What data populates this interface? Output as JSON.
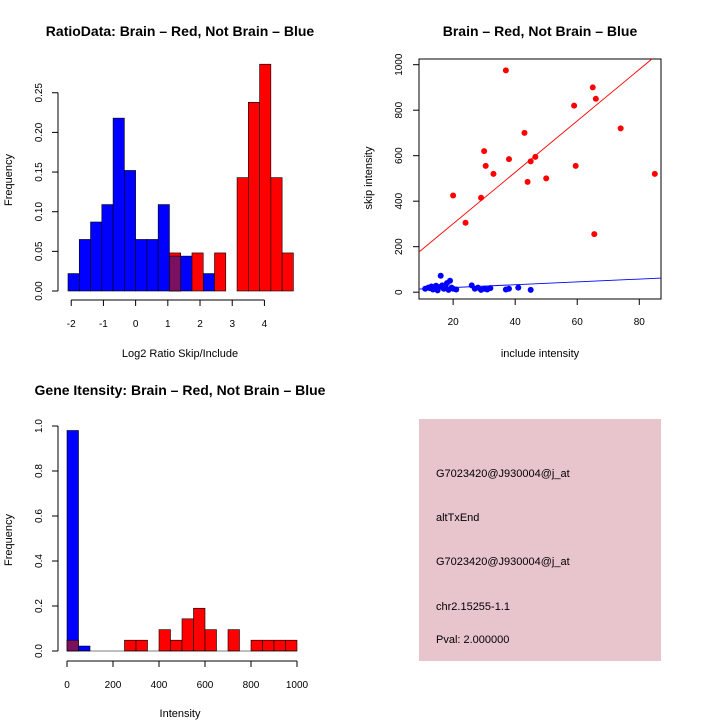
{
  "colors": {
    "brain": "#ff0000",
    "not_brain": "#0000ff",
    "overlap": "#7a1060",
    "info_bg": "#e8c4cc",
    "pval": "#8b0000"
  },
  "chart_data": [
    {
      "id": "ratio_hist",
      "type": "bar",
      "title": "RatioData: Brain – Red, Not Brain – Blue",
      "xlabel": "Log2 Ratio Skip/Include",
      "ylabel": "Frequency",
      "xlim": [
        -2.1,
        4.9
      ],
      "ylim": [
        0,
        0.3
      ],
      "xticks": [
        "-2",
        "-1",
        "0",
        "1",
        "2",
        "3",
        "4"
      ],
      "yticks": [
        "0.00",
        "0.05",
        "0.10",
        "0.15",
        "0.20",
        "0.25"
      ],
      "bin_width": 0.35,
      "series": [
        {
          "name": "Not Brain",
          "color": "blue",
          "bins": [
            [
              -2.1,
              0.022
            ],
            [
              -1.75,
              0.065
            ],
            [
              -1.4,
              0.087
            ],
            [
              -1.05,
              0.109
            ],
            [
              -0.7,
              0.218
            ],
            [
              -0.35,
              0.152
            ],
            [
              0.0,
              0.065
            ],
            [
              0.35,
              0.065
            ],
            [
              0.7,
              0.109
            ],
            [
              1.05,
              0.044
            ],
            [
              1.4,
              0.044
            ],
            [
              2.1,
              0.022
            ]
          ]
        },
        {
          "name": "Brain",
          "color": "red",
          "bins": [
            [
              1.05,
              0.048
            ],
            [
              1.75,
              0.048
            ],
            [
              2.45,
              0.048
            ],
            [
              3.15,
              0.143
            ],
            [
              3.5,
              0.238
            ],
            [
              3.85,
              0.286
            ],
            [
              4.2,
              0.143
            ],
            [
              4.55,
              0.048
            ]
          ]
        }
      ]
    },
    {
      "id": "scatter",
      "type": "scatter",
      "title": "Brain – Red, Not Brain – Blue",
      "xlabel": "include intensity",
      "ylabel": "skip intensity",
      "xlim": [
        9,
        87
      ],
      "ylim": [
        -30,
        1025
      ],
      "xticks": [
        "20",
        "40",
        "60",
        "80"
      ],
      "yticks": [
        "0",
        "200",
        "400",
        "600",
        "800",
        "1000"
      ],
      "series": [
        {
          "name": "Brain",
          "color": "red",
          "points": [
            [
              20,
              425
            ],
            [
              24,
              305
            ],
            [
              29,
              415
            ],
            [
              30,
              620
            ],
            [
              30.5,
              555
            ],
            [
              33,
              520
            ],
            [
              37,
              975
            ],
            [
              38,
              585
            ],
            [
              43,
              700
            ],
            [
              44,
              485
            ],
            [
              45,
              575
            ],
            [
              46.5,
              595
            ],
            [
              50,
              500
            ],
            [
              59,
              820
            ],
            [
              59.5,
              555
            ],
            [
              65,
              900
            ],
            [
              65.5,
              255
            ],
            [
              66,
              850
            ],
            [
              74,
              720
            ],
            [
              85,
              520
            ]
          ],
          "fit": {
            "intercept": 75,
            "slope": 11.3
          }
        },
        {
          "name": "Not Brain",
          "color": "blue",
          "points": [
            [
              11,
              15
            ],
            [
              12,
              20
            ],
            [
              12.5,
              18
            ],
            [
              13,
              25
            ],
            [
              13.5,
              12
            ],
            [
              14,
              20
            ],
            [
              14.5,
              28
            ],
            [
              15,
              8
            ],
            [
              15.5,
              22
            ],
            [
              16,
              72
            ],
            [
              16.5,
              30
            ],
            [
              17,
              15
            ],
            [
              17.5,
              25
            ],
            [
              18,
              40
            ],
            [
              18.5,
              10
            ],
            [
              19,
              50
            ],
            [
              19.5,
              20
            ],
            [
              20,
              15
            ],
            [
              21,
              12
            ],
            [
              26,
              30
            ],
            [
              27,
              15
            ],
            [
              28,
              20
            ],
            [
              29,
              10
            ],
            [
              30,
              15
            ],
            [
              31,
              12
            ],
            [
              32,
              18
            ],
            [
              37,
              12
            ],
            [
              38,
              15
            ],
            [
              41,
              20
            ],
            [
              45,
              10
            ]
          ],
          "fit": {
            "intercept": 8,
            "slope": 0.62
          }
        }
      ]
    },
    {
      "id": "intensity_hist",
      "type": "bar",
      "title": "Gene Itensity: Brain – Red, Not Brain – Blue",
      "xlabel": "Intensity",
      "ylabel": "Frequency",
      "xlim": [
        0,
        1000
      ],
      "ylim": [
        0,
        1.0
      ],
      "xticks": [
        "0",
        "200",
        "400",
        "600",
        "800",
        "1000"
      ],
      "yticks": [
        "0.0",
        "0.2",
        "0.4",
        "0.6",
        "0.8",
        "1.0"
      ],
      "bin_width": 50,
      "series": [
        {
          "name": "Not Brain",
          "color": "blue",
          "bins": [
            [
              0,
              0.98
            ],
            [
              50,
              0.022
            ]
          ]
        },
        {
          "name": "Brain",
          "color": "red",
          "bins": [
            [
              0,
              0.048
            ],
            [
              250,
              0.048
            ],
            [
              300,
              0.048
            ],
            [
              400,
              0.095
            ],
            [
              450,
              0.048
            ],
            [
              500,
              0.143
            ],
            [
              550,
              0.19
            ],
            [
              600,
              0.095
            ],
            [
              700,
              0.095
            ],
            [
              800,
              0.048
            ],
            [
              850,
              0.048
            ],
            [
              900,
              0.048
            ],
            [
              950,
              0.048
            ]
          ]
        }
      ]
    }
  ],
  "info_panel": {
    "probe_id": "G7023420@J930004@j_at",
    "event_type": "altTxEnd",
    "probe_id_2": "G7023420@J930004@j_at",
    "location": "chr2.15255-1.1",
    "pval": "Pval: 2.000000"
  }
}
